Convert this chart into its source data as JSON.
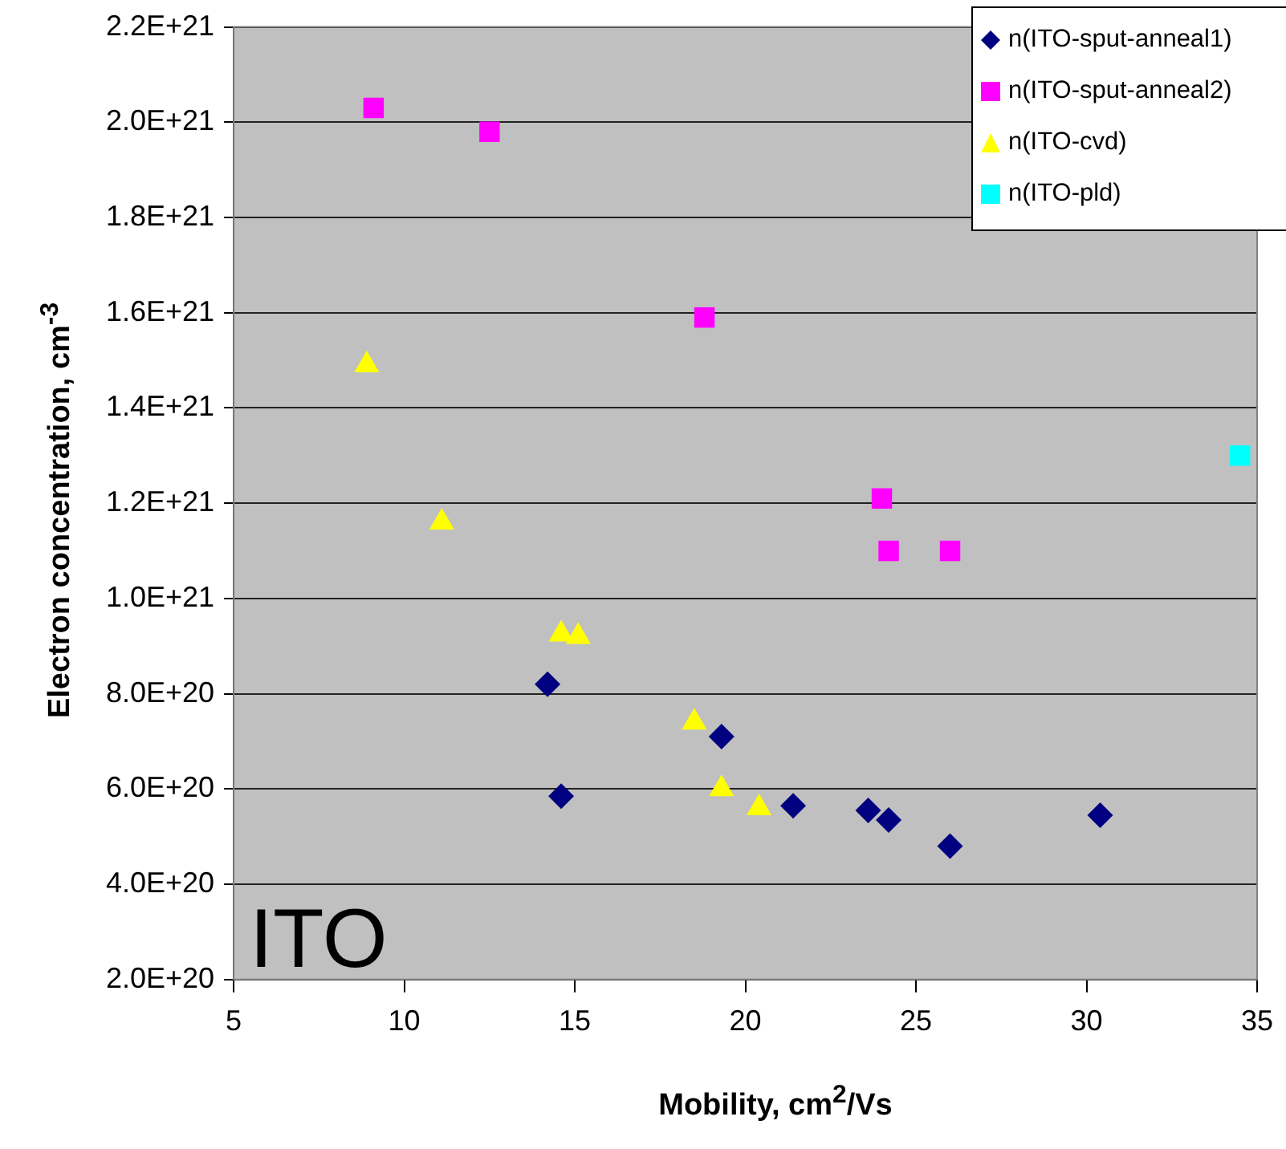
{
  "chart_data": {
    "type": "scatter",
    "xlabel": "Mobility, cm$^{2}$/Vs",
    "ylabel": "Electron concentration, cm$^{-3}$",
    "xlim": [
      5,
      35
    ],
    "xticks": [
      5,
      10,
      15,
      20,
      25,
      30,
      35
    ],
    "ylim": [
      2e+20,
      2.2e+21
    ],
    "yticks": [
      {
        "value": 2e+20,
        "label": "2.0E+20"
      },
      {
        "value": 4e+20,
        "label": "4.0E+20"
      },
      {
        "value": 6e+20,
        "label": "6.0E+20"
      },
      {
        "value": 8e+20,
        "label": "8.0E+20"
      },
      {
        "value": 1e+21,
        "label": "1.0E+21"
      },
      {
        "value": 1.2e+21,
        "label": "1.2E+21"
      },
      {
        "value": 1.4e+21,
        "label": "1.4E+21"
      },
      {
        "value": 1.6e+21,
        "label": "1.6E+21"
      },
      {
        "value": 1.8e+21,
        "label": "1.8E+21"
      },
      {
        "value": 2e+21,
        "label": "2.0E+21"
      },
      {
        "value": 2.2e+21,
        "label": "2.2E+21"
      }
    ],
    "grid": "y",
    "legend": "top right",
    "annotations": [
      "ITO"
    ],
    "series": [
      {
        "name": "n(ITO-sput-anneal1)",
        "color": "#000080",
        "marker": "diamond",
        "x": [
          14.2,
          14.6,
          19.3,
          21.4,
          23.6,
          24.2,
          26.0,
          30.4
        ],
        "values": [
          8.2e+20,
          5.85e+20,
          7.1e+20,
          5.65e+20,
          5.55e+20,
          5.35e+20,
          4.8e+20,
          5.45e+20
        ]
      },
      {
        "name": "n(ITO-sput-anneal2)",
        "color": "#ff00ff",
        "marker": "square",
        "x": [
          9.1,
          12.5,
          18.8,
          24.0,
          24.2,
          26.0
        ],
        "values": [
          2.03e+21,
          1.98e+21,
          1.59e+21,
          1.21e+21,
          1.1e+21,
          1.1e+21
        ]
      },
      {
        "name": "n(ITO-cvd)",
        "color": "#ffff00",
        "marker": "triangle",
        "x": [
          8.9,
          11.1,
          14.6,
          15.1,
          18.5,
          19.3,
          20.4
        ],
        "values": [
          1.49e+21,
          1.16e+21,
          9.25e+20,
          9.2e+20,
          7.4e+20,
          6e+20,
          5.6e+20
        ]
      },
      {
        "name": "n(ITO-pld)",
        "color": "#00ffff",
        "marker": "square",
        "x": [
          34.5
        ],
        "values": [
          1.3e+21
        ]
      }
    ]
  }
}
